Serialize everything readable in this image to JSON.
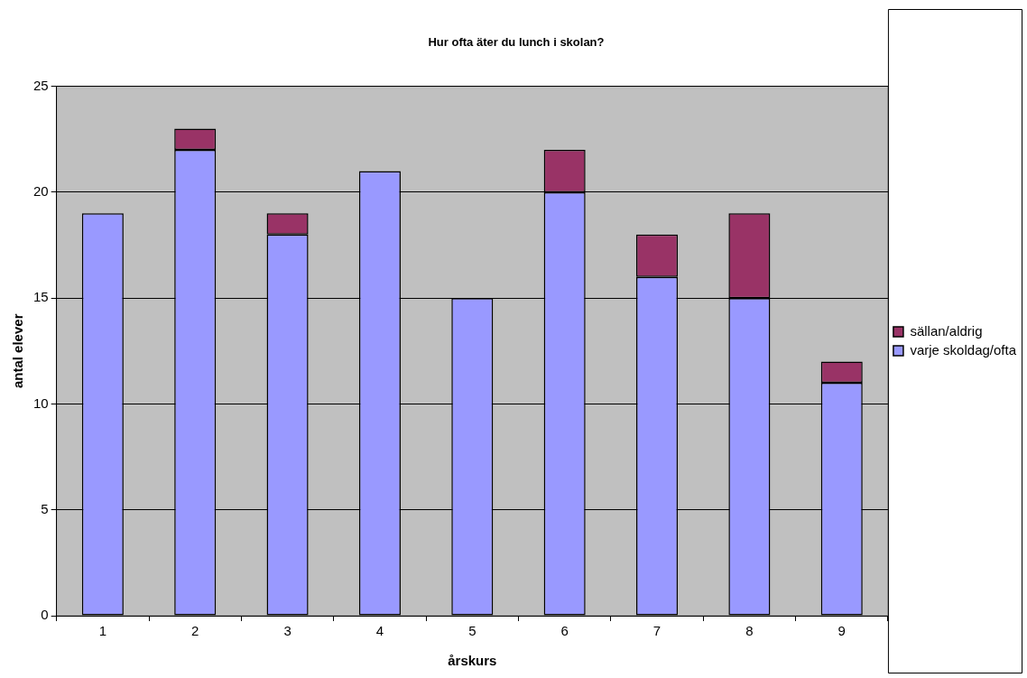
{
  "chart_data": {
    "type": "bar",
    "title": "Hur ofta äter du lunch i skolan?",
    "xlabel": "årskurs",
    "ylabel": "antal elever",
    "categories": [
      "1",
      "2",
      "3",
      "4",
      "5",
      "6",
      "7",
      "8",
      "9"
    ],
    "stacked": true,
    "series": [
      {
        "name": "varje skoldag/ofta",
        "color": "#9999ff",
        "values": [
          19,
          22,
          18,
          21,
          15,
          20,
          16,
          15,
          11
        ]
      },
      {
        "name": "sällan/aldrig",
        "color": "#993366",
        "values": [
          null,
          1,
          1,
          null,
          null,
          2,
          2,
          4,
          1
        ]
      }
    ],
    "ylim": [
      0,
      25
    ],
    "yticks": [
      0,
      5,
      10,
      15,
      20,
      25
    ],
    "grid": "y",
    "legend": "right"
  }
}
